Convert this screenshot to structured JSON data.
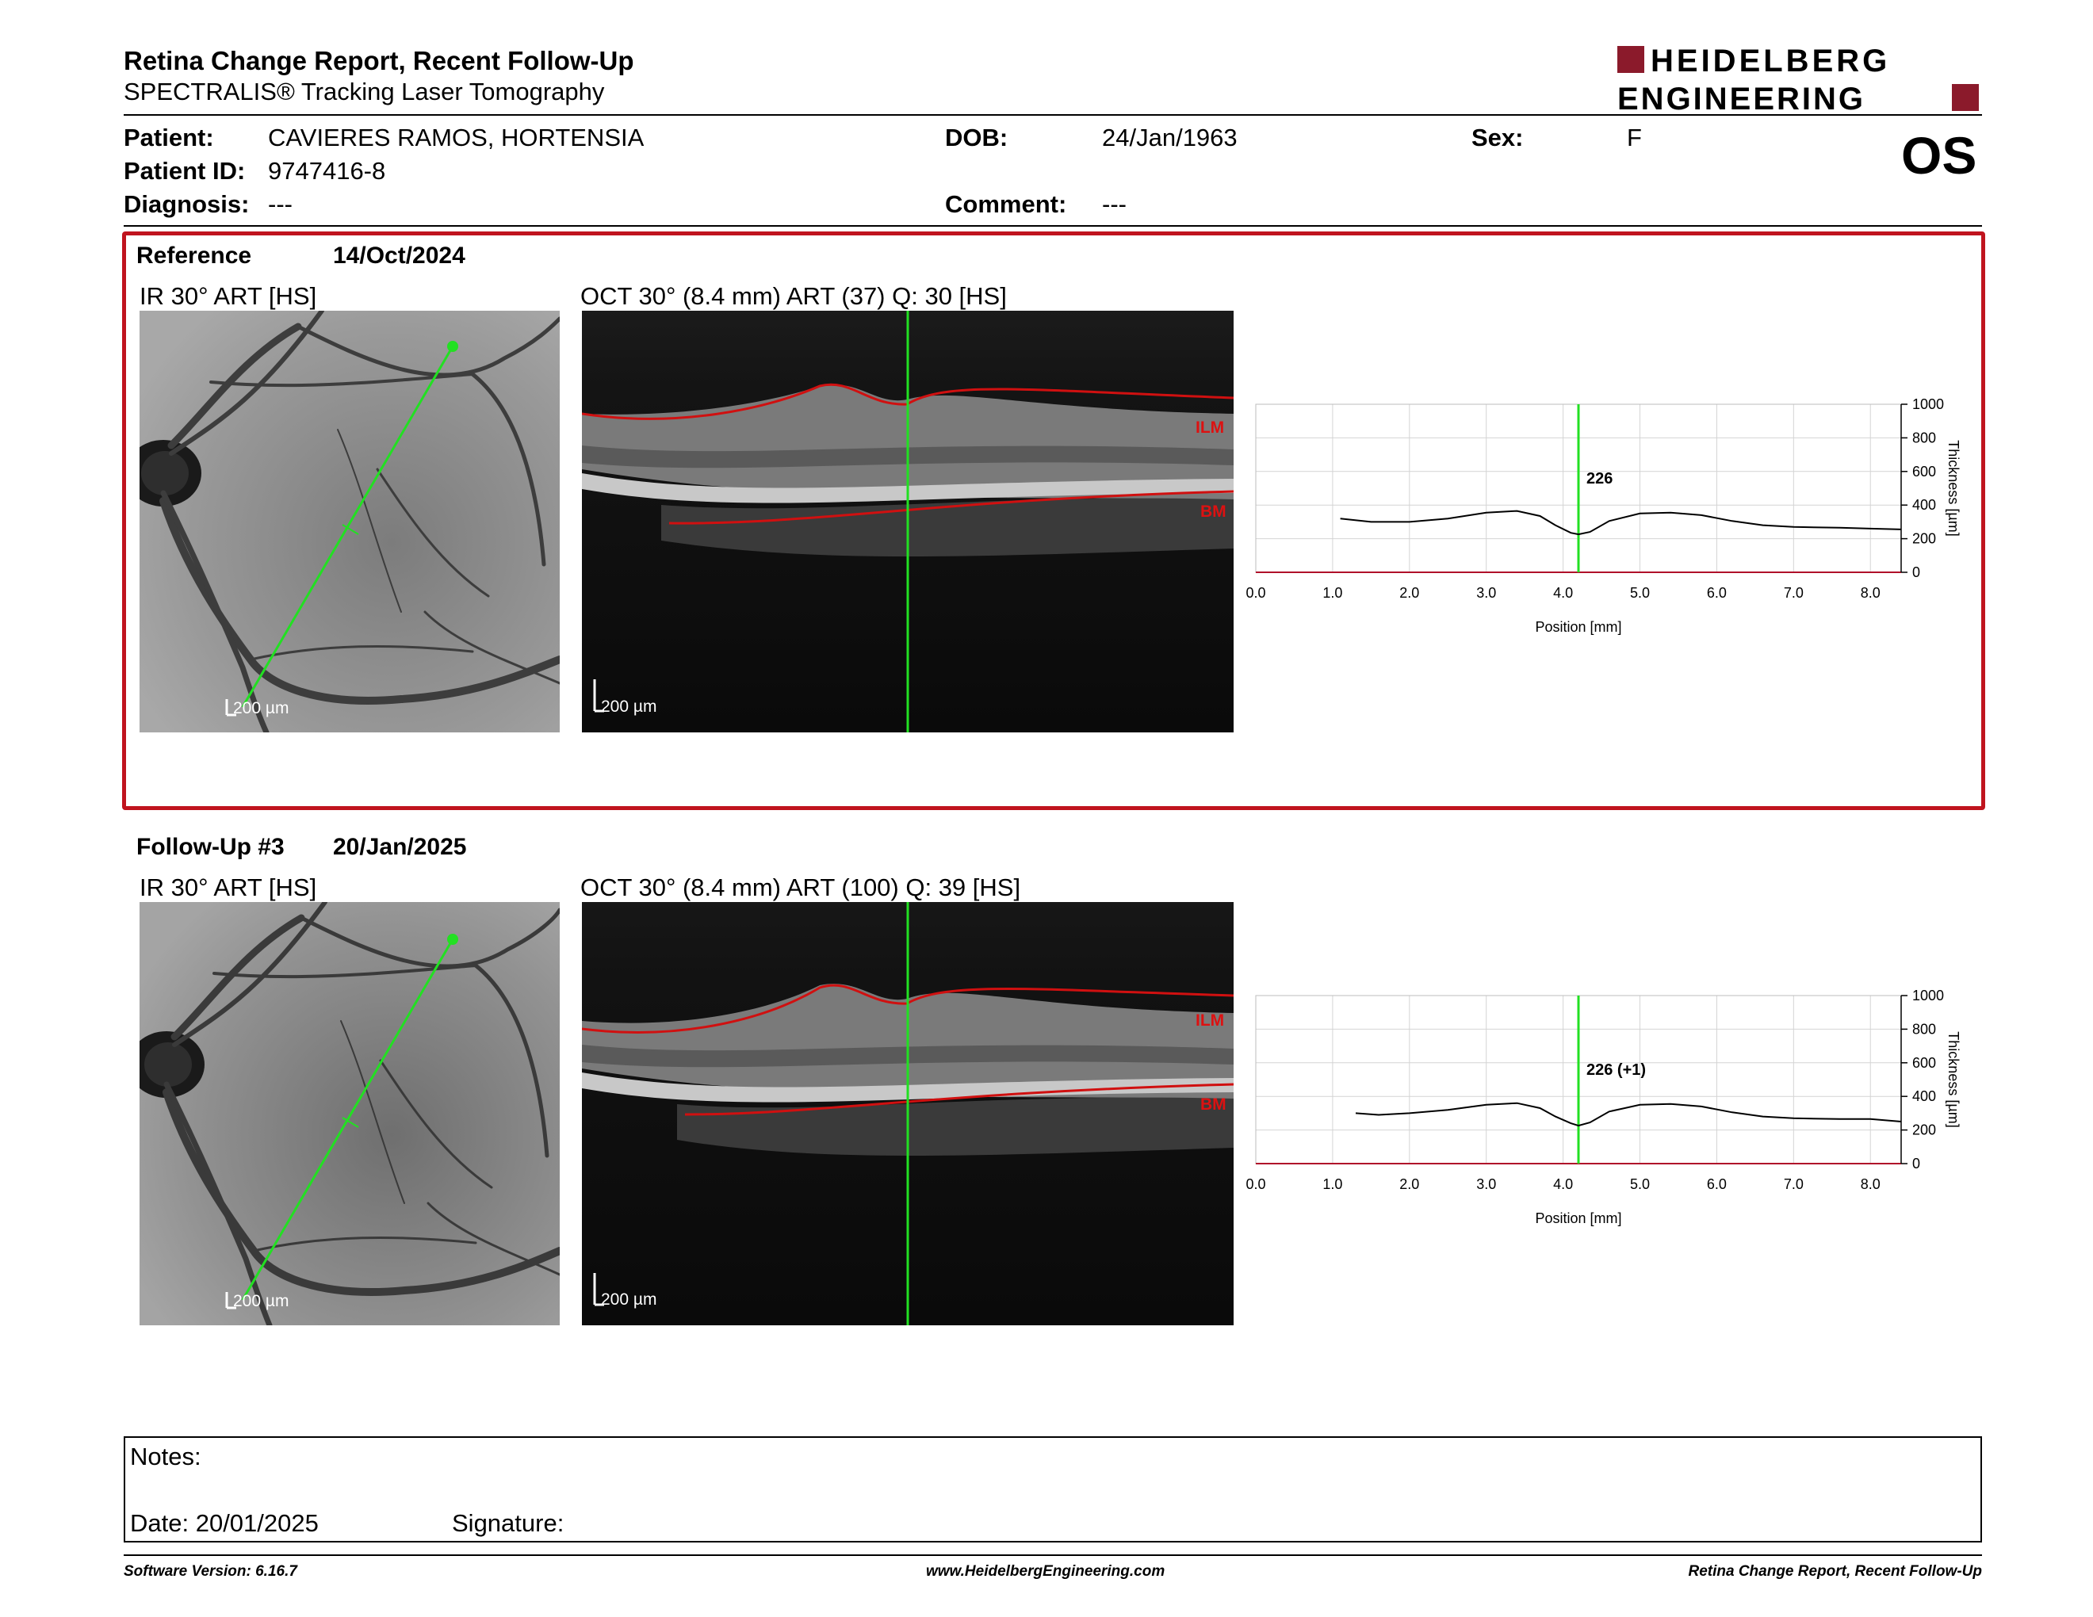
{
  "header": {
    "title": "Retina Change Report, Recent Follow-Up",
    "subtitle": "SPECTRALIS® Tracking Laser Tomography",
    "logo_line1": "HEIDELBERG",
    "logo_line2": "ENGINEERING",
    "eye": "OS"
  },
  "patient": {
    "patient_label": "Patient:",
    "patient_value": "CAVIERES RAMOS, HORTENSIA",
    "id_label": "Patient ID:",
    "id_value": "9747416-8",
    "diagnosis_label": "Diagnosis:",
    "diagnosis_value": "---",
    "dob_label": "DOB:",
    "dob_value": "24/Jan/1963",
    "comment_label": "Comment:",
    "comment_value": "---",
    "sex_label": "Sex:",
    "sex_value": "F"
  },
  "reference": {
    "label": "Reference",
    "date": "14/Oct/2024",
    "ir_label": "IR 30° ART [HS]",
    "oct_label": "OCT 30° (8.4 mm) ART (37) Q: 30 [HS]",
    "scale": "200 µm",
    "value_label": "226"
  },
  "followup": {
    "label": "Follow-Up #3",
    "date": "20/Jan/2025",
    "ir_label": "IR 30° ART [HS]",
    "oct_label": "OCT 30° (8.4 mm) ART (100) Q: 39 [HS]",
    "scale": "200 µm",
    "value_label": "226 (+1)"
  },
  "layers": {
    "top": "ILM",
    "bottom": "BM"
  },
  "chart_data": [
    {
      "type": "line",
      "xlabel": "Position [mm]",
      "ylabel": "Thickness [µm]",
      "xlim": [
        0.0,
        8.4
      ],
      "ylim": [
        0,
        1000
      ],
      "xticks": [
        "0.0",
        "1.0",
        "2.0",
        "3.0",
        "4.0",
        "5.0",
        "6.0",
        "7.0",
        "8.0"
      ],
      "yticks": [
        "0",
        "200",
        "400",
        "600",
        "800",
        "1000"
      ],
      "grid": true,
      "marker_x": 4.2,
      "marker_label": "226",
      "series": [
        {
          "x": [
            1.1,
            1.5,
            2.0,
            2.5,
            3.0,
            3.4,
            3.7,
            3.9,
            4.1,
            4.2,
            4.35,
            4.6,
            5.0,
            5.4,
            5.8,
            6.2,
            6.6,
            7.0,
            7.6,
            8.0,
            8.4
          ],
          "values": [
            320,
            300,
            300,
            320,
            355,
            365,
            335,
            280,
            235,
            226,
            240,
            305,
            350,
            355,
            340,
            305,
            280,
            270,
            265,
            260,
            255
          ]
        }
      ]
    },
    {
      "type": "line",
      "xlabel": "Position [mm]",
      "ylabel": "Thickness [µm]",
      "xlim": [
        0.0,
        8.4
      ],
      "ylim": [
        0,
        1000
      ],
      "xticks": [
        "0.0",
        "1.0",
        "2.0",
        "3.0",
        "4.0",
        "5.0",
        "6.0",
        "7.0",
        "8.0"
      ],
      "yticks": [
        "0",
        "200",
        "400",
        "600",
        "800",
        "1000"
      ],
      "grid": true,
      "marker_x": 4.2,
      "marker_label": "226 (+1)",
      "series": [
        {
          "x": [
            1.3,
            1.6,
            2.0,
            2.5,
            3.0,
            3.4,
            3.7,
            3.9,
            4.1,
            4.2,
            4.35,
            4.6,
            5.0,
            5.4,
            5.8,
            6.2,
            6.6,
            7.0,
            7.6,
            8.0,
            8.4
          ],
          "values": [
            300,
            290,
            300,
            320,
            350,
            360,
            330,
            280,
            240,
            226,
            245,
            310,
            350,
            355,
            340,
            305,
            280,
            270,
            265,
            265,
            250
          ]
        }
      ]
    }
  ],
  "notes": {
    "notes_label": "Notes:",
    "date_label": "Date: 20/01/2025",
    "signature_label": "Signature:"
  },
  "footer": {
    "left": "Software Version: 6.16.7",
    "center": "www.HeidelbergEngineering.com",
    "right": "Retina Change Report, Recent Follow-Up"
  }
}
